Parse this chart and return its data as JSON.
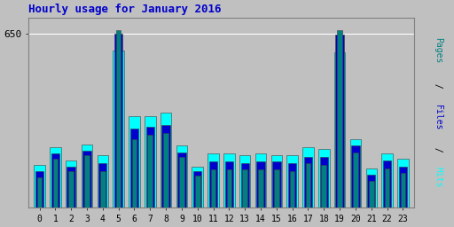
{
  "title": "Hourly usage for January 2016",
  "hours": [
    0,
    1,
    2,
    3,
    4,
    5,
    6,
    7,
    8,
    9,
    10,
    11,
    12,
    13,
    14,
    15,
    16,
    17,
    18,
    19,
    20,
    21,
    22,
    23
  ],
  "pages": [
    195,
    255,
    215,
    265,
    215,
    660,
    315,
    330,
    335,
    260,
    200,
    220,
    220,
    220,
    220,
    220,
    215,
    240,
    235,
    660,
    275,
    185,
    225,
    210
  ],
  "files": [
    215,
    270,
    230,
    280,
    240,
    650,
    350,
    355,
    360,
    275,
    215,
    245,
    245,
    240,
    245,
    245,
    240,
    260,
    260,
    645,
    295,
    205,
    250,
    230
  ],
  "hits": [
    235,
    290,
    250,
    300,
    265,
    595,
    390,
    390,
    400,
    295,
    230,
    270,
    270,
    265,
    270,
    265,
    265,
    290,
    285,
    590,
    315,
    225,
    270,
    255
  ],
  "color_pages": "#008080",
  "color_files": "#0000cd",
  "color_hits": "#00ffff",
  "bg_color": "#c0c0c0",
  "plot_bg": "#c0c0c0",
  "title_color": "#0000cc",
  "ytick_label": "650",
  "ylim_max": 700,
  "ylim_min": 100,
  "bar_width": 0.7,
  "ylabel_items": [
    {
      "text": "Pages",
      "color": "#008080"
    },
    {
      "text": " / ",
      "color": "#000000"
    },
    {
      "text": "Files",
      "color": "#0000cd"
    },
    {
      "text": " / ",
      "color": "#000000"
    },
    {
      "text": "Hits",
      "color": "#00ffff"
    }
  ]
}
